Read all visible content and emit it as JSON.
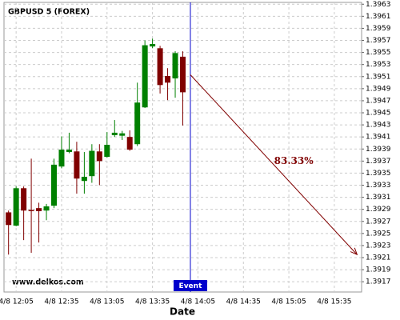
{
  "chart_data": {
    "type": "candlestick",
    "title": "GBPUSD 5 (FOREX)",
    "watermark": "www.delkos.com",
    "xlabel": "Date",
    "x": [
      "4/8 12:00",
      "4/8 12:05",
      "4/8 12:10",
      "4/8 12:15",
      "4/8 12:20",
      "4/8 12:25",
      "4/8 12:30",
      "4/8 12:35",
      "4/8 12:40",
      "4/8 12:45",
      "4/8 12:50",
      "4/8 12:55",
      "4/8 13:00",
      "4/8 13:05",
      "4/8 13:10",
      "4/8 13:15",
      "4/8 13:20",
      "4/8 13:25",
      "4/8 13:30",
      "4/8 13:35",
      "4/8 13:40",
      "4/8 13:45",
      "4/8 13:50",
      "4/8 13:55"
    ],
    "open": [
      1.39285,
      1.39263,
      1.39325,
      1.39289,
      1.39292,
      1.39288,
      1.39296,
      1.39361,
      1.39385,
      1.39386,
      1.39337,
      1.39345,
      1.39386,
      1.39377,
      1.39413,
      1.39412,
      1.3941,
      1.39398,
      1.39459,
      1.3956,
      1.39557,
      1.39511,
      1.39507,
      1.39543
    ],
    "high": [
      1.39288,
      1.39328,
      1.39328,
      1.39374,
      1.39301,
      1.39299,
      1.39374,
      1.39411,
      1.39417,
      1.39402,
      1.39385,
      1.39398,
      1.39398,
      1.39418,
      1.39438,
      1.3942,
      1.39421,
      1.395,
      1.3957,
      1.39573,
      1.39561,
      1.39524,
      1.39552,
      1.39552
    ],
    "low": [
      1.39215,
      1.39262,
      1.39239,
      1.39218,
      1.39235,
      1.39272,
      1.39292,
      1.39358,
      1.39383,
      1.39316,
      1.39316,
      1.39334,
      1.3933,
      1.39376,
      1.3941,
      1.39405,
      1.39387,
      1.39395,
      1.39458,
      1.39557,
      1.39482,
      1.39471,
      1.39475,
      1.39429
    ],
    "close": [
      1.39264,
      1.39325,
      1.39288,
      1.39287,
      1.39287,
      1.39295,
      1.39364,
      1.39389,
      1.39389,
      1.39341,
      1.39344,
      1.39387,
      1.3937,
      1.39397,
      1.39417,
      1.39416,
      1.39389,
      1.39467,
      1.39562,
      1.39564,
      1.39496,
      1.395,
      1.39549,
      1.39484
    ],
    "up_color": "#008000",
    "down_color": "#800000",
    "xlim": [
      "4/8 11:57",
      "4/8 15:53"
    ],
    "xticks": [
      "4/8 12:05",
      "4/8 12:35",
      "4/8 13:05",
      "4/8 13:35",
      "4/8 14:05",
      "4/8 14:35",
      "4/8 15:05",
      "4/8 15:35"
    ],
    "ylim": [
      1.39153,
      1.39633
    ],
    "yticks": [
      1.3917,
      1.3919,
      1.3921,
      1.3923,
      1.3925,
      1.3927,
      1.3929,
      1.3931,
      1.3933,
      1.3935,
      1.3937,
      1.3939,
      1.3941,
      1.3943,
      1.3945,
      1.3947,
      1.3949,
      1.3951,
      1.3953,
      1.3955,
      1.3957,
      1.3959,
      1.3961,
      1.3963
    ],
    "grid": true,
    "event": {
      "x": "4/8 14:00",
      "label": "Event",
      "color": "#0000cc"
    },
    "projection": {
      "start": {
        "x": "4/8 14:00",
        "y": 1.39513
      },
      "end": {
        "x": "4/8 15:50",
        "y": 1.39215
      },
      "label": "83.33%",
      "color": "#800000"
    }
  }
}
